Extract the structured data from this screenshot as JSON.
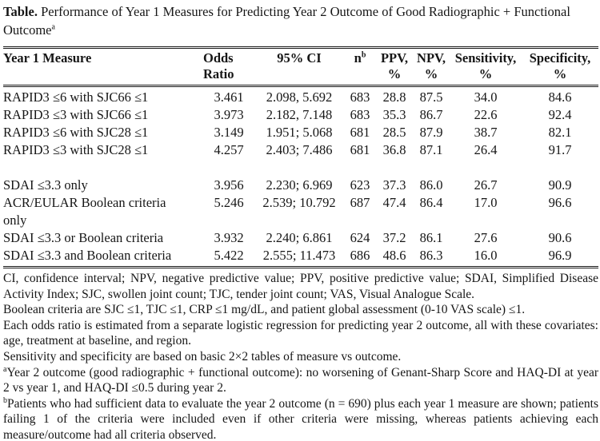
{
  "title": {
    "label": "Table.",
    "text": "Performance of Year 1 Measures for Predicting Year 2 Outcome of Good Radiographic + Functional Outcome",
    "sup": "a"
  },
  "table": {
    "headers": [
      {
        "text": "Year 1 Measure"
      },
      {
        "text": "Odds\nRatio"
      },
      {
        "text": "95% CI"
      },
      {
        "text": "n",
        "sup": "b"
      },
      {
        "text": "PPV,\n%"
      },
      {
        "text": "NPV,\n%"
      },
      {
        "text": "Sensitivity,\n%"
      },
      {
        "text": "Specificity,\n%"
      }
    ],
    "rows": [
      {
        "cells": [
          "RAPID3 ≤6 with SJC66 ≤1",
          "3.461",
          "2.098, 5.692",
          "683",
          "28.8",
          "87.5",
          "34.0",
          "84.6"
        ]
      },
      {
        "cells": [
          "RAPID3 ≤3 with SJC66 ≤1",
          "3.973",
          "2.182, 7.148",
          "683",
          "35.3",
          "86.7",
          "22.6",
          "92.4"
        ]
      },
      {
        "cells": [
          "RAPID3 ≤6 with SJC28 ≤1",
          "3.149",
          "1.951; 5.068",
          "681",
          "28.5",
          "87.9",
          "38.7",
          "82.1"
        ]
      },
      {
        "cells": [
          "RAPID3 ≤3 with SJC28 ≤1",
          "4.257",
          "2.403; 7.486",
          "681",
          "36.8",
          "87.1",
          "26.4",
          "91.7"
        ],
        "spacer_after": true
      },
      {
        "cells": [
          "SDAI ≤3.3 only",
          "3.956",
          "2.230; 6.969",
          "623",
          "37.3",
          "86.0",
          "26.7",
          "90.9"
        ]
      },
      {
        "cells": [
          "ACR/EULAR Boolean criteria\nonly",
          "5.246",
          "2.539; 10.792",
          "687",
          "47.4",
          "86.4",
          "17.0",
          "96.6"
        ]
      },
      {
        "cells": [
          "SDAI ≤3.3 or Boolean criteria",
          "3.932",
          "2.240; 6.861",
          "624",
          "37.2",
          "86.1",
          "27.6",
          "90.6"
        ]
      },
      {
        "cells": [
          "SDAI ≤3.3 and Boolean criteria",
          "5.422",
          "2.555; 11.473",
          "686",
          "48.6",
          "86.3",
          "16.0",
          "96.9"
        ]
      }
    ]
  },
  "footnotes": [
    {
      "text": "CI, confidence interval; NPV, negative predictive value; PPV, positive predictive value; SDAI, Simplified Disease Activity Index; SJC, swollen joint count; TJC, tender joint count; VAS, Visual Analogue Scale."
    },
    {
      "text": "Boolean criteria are SJC ≤1, TJC ≤1, CRP ≤1 mg/dL, and patient global assessment (0-10 VAS scale) ≤1."
    },
    {
      "text": "Each odds ratio is estimated from a separate logistic regression for predicting year 2 outcome, all with these covariates: age, treatment at baseline, and region."
    },
    {
      "text": "Sensitivity and specificity are based on basic 2×2 tables of measure vs outcome."
    },
    {
      "sup": "a",
      "text": "Year 2 outcome (good radiographic + functional outcome): no worsening of Genant-Sharp Score and HAQ-DI at year 2 vs year 1, and HAQ-DI ≤0.5 during year 2."
    },
    {
      "sup": "b",
      "text": "Patients who had sufficient data to evaluate the year 2 outcome (n = 690) plus each year 1 measure are shown; patients failing 1 of the criteria were included even if other criteria were missing, whereas patients achieving each measure/outcome had all criteria observed."
    }
  ]
}
